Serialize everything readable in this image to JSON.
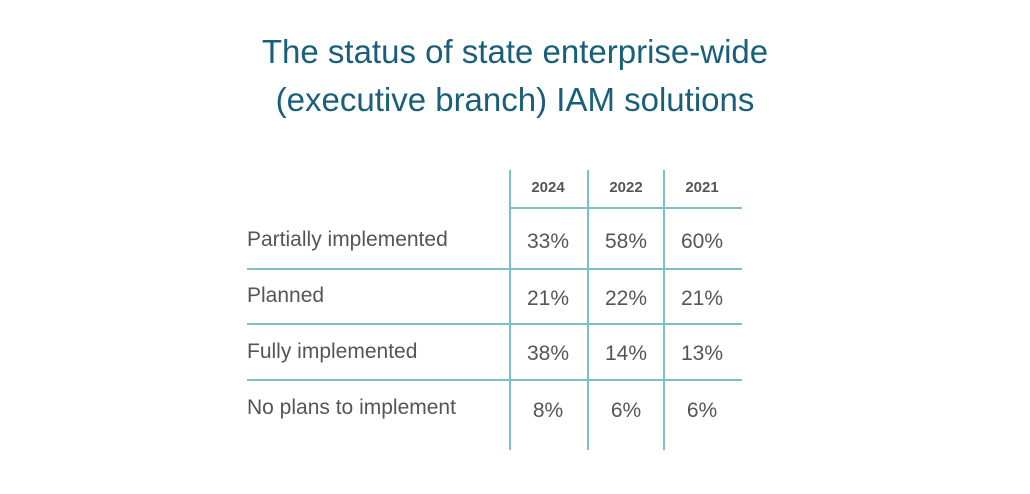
{
  "chart_data": {
    "type": "table",
    "title_lines": [
      "The status of state enterprise-wide",
      "(executive branch) IAM solutions"
    ],
    "columns": [
      "2024",
      "2022",
      "2021"
    ],
    "rows": [
      {
        "label": "Partially implemented",
        "values": [
          "33%",
          "58%",
          "60%"
        ]
      },
      {
        "label": "Planned",
        "values": [
          "21%",
          "22%",
          "21%"
        ]
      },
      {
        "label": "Fully implemented",
        "values": [
          "38%",
          "14%",
          "13%"
        ]
      },
      {
        "label": "No plans to implement",
        "values": [
          "8%",
          "6%",
          "6%"
        ]
      }
    ]
  },
  "colors": {
    "title": "#1a5f7a",
    "text": "#555555",
    "rule": "#7fbfc6"
  }
}
